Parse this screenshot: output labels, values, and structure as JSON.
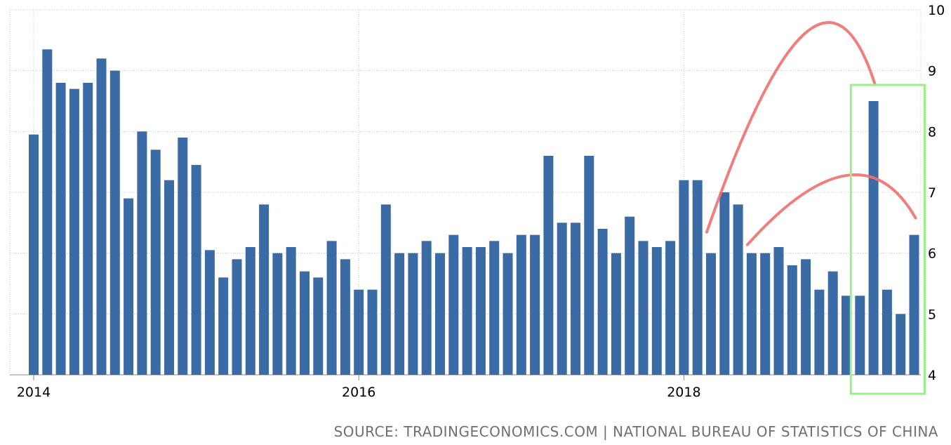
{
  "chart_data": {
    "type": "bar",
    "x": [
      "2014-01",
      "2014-02",
      "2014-03",
      "2014-04",
      "2014-05",
      "2014-06",
      "2014-07",
      "2014-08",
      "2014-09",
      "2014-10",
      "2014-11",
      "2014-12",
      "2015-01",
      "2015-02",
      "2015-03",
      "2015-04",
      "2015-05",
      "2015-06",
      "2015-07",
      "2015-08",
      "2015-09",
      "2015-10",
      "2015-11",
      "2015-12",
      "2016-01",
      "2016-02",
      "2016-03",
      "2016-04",
      "2016-05",
      "2016-06",
      "2016-07",
      "2016-08",
      "2016-09",
      "2016-10",
      "2016-11",
      "2016-12",
      "2017-01",
      "2017-02",
      "2017-03",
      "2017-04",
      "2017-05",
      "2017-06",
      "2017-07",
      "2017-08",
      "2017-09",
      "2017-10",
      "2017-11",
      "2017-12",
      "2018-01",
      "2018-02",
      "2018-03",
      "2018-04",
      "2018-05",
      "2018-06",
      "2018-07",
      "2018-08",
      "2018-09",
      "2018-10",
      "2018-11",
      "2018-12",
      "2019-01",
      "2019-02",
      "2019-03",
      "2019-04",
      "2019-05",
      "2019-06"
    ],
    "values": [
      7.95,
      9.35,
      8.8,
      8.7,
      8.8,
      9.2,
      9.0,
      6.9,
      8.0,
      7.7,
      7.2,
      7.9,
      7.45,
      6.05,
      5.6,
      5.9,
      6.1,
      6.8,
      6.0,
      6.1,
      5.7,
      5.6,
      6.2,
      5.9,
      5.4,
      5.4,
      6.8,
      6.0,
      6.0,
      6.2,
      6.0,
      6.3,
      6.1,
      6.1,
      6.2,
      6.0,
      6.3,
      6.3,
      7.6,
      6.5,
      6.5,
      7.6,
      6.4,
      6.0,
      6.6,
      6.2,
      6.1,
      6.2,
      7.2,
      7.2,
      6.0,
      7.0,
      6.8,
      6.0,
      6.0,
      6.1,
      5.8,
      5.9,
      5.4,
      5.7,
      5.3,
      5.3,
      8.5,
      5.4,
      5.0,
      6.3
    ],
    "x_tick_labels": [
      "2014",
      "2016",
      "2018"
    ],
    "y_ticks": [
      "4",
      "5",
      "6",
      "7",
      "8",
      "9",
      "10"
    ],
    "ylim": [
      4,
      10
    ],
    "y_axis_side": "right",
    "grid": true,
    "bar_color": "#3a6ba5",
    "annotation_arc_color": "#f07070",
    "annotation_box_color": "#9af088",
    "annotations": [
      {
        "type": "arc",
        "from": "2018-03",
        "to": "2019-03"
      },
      {
        "type": "arc",
        "from": "2018-06",
        "to": "2019-06"
      },
      {
        "type": "box",
        "from": "2019-03",
        "to": "2019-06"
      }
    ],
    "source": "SOURCE: TRADINGECONOMICS.COM | NATIONAL BUREAU OF STATISTICS OF CHINA"
  }
}
